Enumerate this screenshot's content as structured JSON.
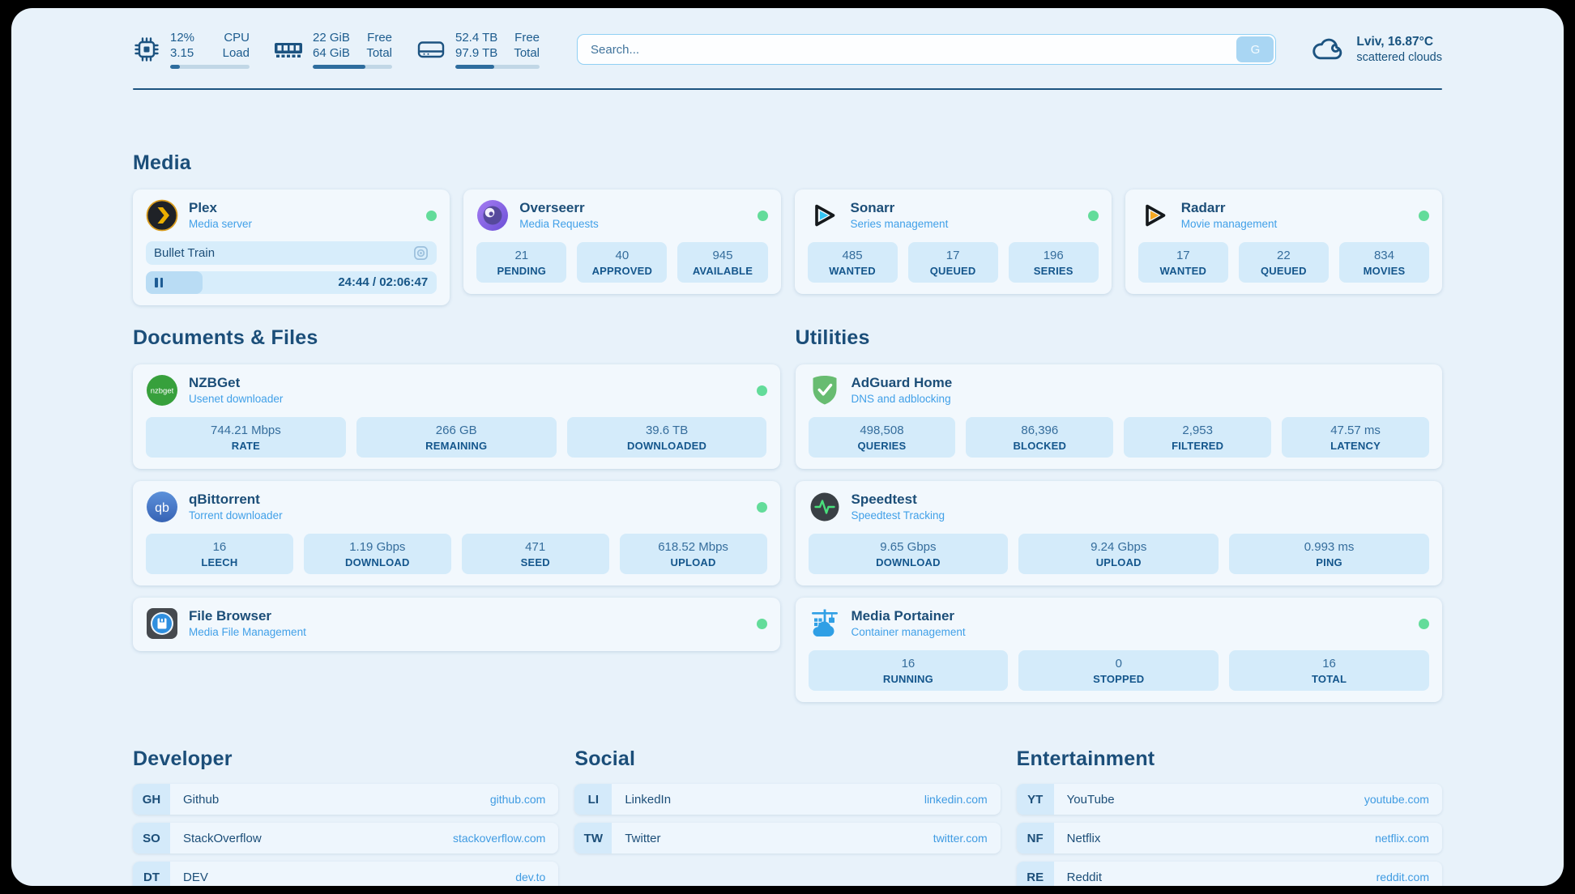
{
  "topbar": {
    "stats": [
      {
        "name": "cpu",
        "line1_value": "12%",
        "line1_label": "CPU",
        "line2_value": "3.15",
        "line2_label": "Load",
        "progress_pct": 12
      },
      {
        "name": "memory",
        "line1_value": "22 GiB",
        "line1_label": "Free",
        "line2_value": "64 GiB",
        "line2_label": "Total",
        "progress_pct": 66
      },
      {
        "name": "disk",
        "line1_value": "52.4 TB",
        "line1_label": "Free",
        "line2_value": "97.9 TB",
        "line2_label": "Total",
        "progress_pct": 46
      }
    ],
    "search": {
      "placeholder": "Search...",
      "button_label": "G"
    },
    "weather": {
      "location": "Lviv, 16.87°C",
      "condition": "scattered clouds"
    }
  },
  "sections": {
    "media": "Media",
    "documents": "Documents & Files",
    "utilities": "Utilities",
    "developer": "Developer",
    "social": "Social",
    "entertainment": "Entertainment"
  },
  "apps": {
    "plex": {
      "title": "Plex",
      "subtitle": "Media server",
      "now_playing": {
        "title": "Bullet Train",
        "time": "24:44 / 02:06:47",
        "progress_pct": 19.5
      }
    },
    "overseerr": {
      "title": "Overseerr",
      "subtitle": "Media Requests",
      "stats": [
        {
          "value": "21",
          "label": "PENDING"
        },
        {
          "value": "40",
          "label": "APPROVED"
        },
        {
          "value": "945",
          "label": "AVAILABLE"
        }
      ]
    },
    "sonarr": {
      "title": "Sonarr",
      "subtitle": "Series management",
      "stats": [
        {
          "value": "485",
          "label": "WANTED"
        },
        {
          "value": "17",
          "label": "QUEUED"
        },
        {
          "value": "196",
          "label": "SERIES"
        }
      ]
    },
    "radarr": {
      "title": "Radarr",
      "subtitle": "Movie management",
      "stats": [
        {
          "value": "17",
          "label": "WANTED"
        },
        {
          "value": "22",
          "label": "QUEUED"
        },
        {
          "value": "834",
          "label": "MOVIES"
        }
      ]
    },
    "nzbget": {
      "title": "NZBGet",
      "subtitle": "Usenet downloader",
      "stats": [
        {
          "value": "744.21 Mbps",
          "label": "RATE"
        },
        {
          "value": "266 GB",
          "label": "REMAINING"
        },
        {
          "value": "39.6 TB",
          "label": "DOWNLOADED"
        }
      ]
    },
    "qbittorrent": {
      "title": "qBittorrent",
      "subtitle": "Torrent downloader",
      "stats": [
        {
          "value": "16",
          "label": "LEECH"
        },
        {
          "value": "1.19 Gbps",
          "label": "DOWNLOAD"
        },
        {
          "value": "471",
          "label": "SEED"
        },
        {
          "value": "618.52 Mbps",
          "label": "UPLOAD"
        }
      ]
    },
    "filebrowser": {
      "title": "File Browser",
      "subtitle": "Media File Management"
    },
    "adguard": {
      "title": "AdGuard Home",
      "subtitle": "DNS and adblocking",
      "stats": [
        {
          "value": "498,508",
          "label": "QUERIES"
        },
        {
          "value": "86,396",
          "label": "BLOCKED"
        },
        {
          "value": "2,953",
          "label": "FILTERED"
        },
        {
          "value": "47.57 ms",
          "label": "LATENCY"
        }
      ]
    },
    "speedtest": {
      "title": "Speedtest",
      "subtitle": "Speedtest Tracking",
      "stats": [
        {
          "value": "9.65 Gbps",
          "label": "DOWNLOAD"
        },
        {
          "value": "9.24 Gbps",
          "label": "UPLOAD"
        },
        {
          "value": "0.993 ms",
          "label": "PING"
        }
      ]
    },
    "portainer": {
      "title": "Media Portainer",
      "subtitle": "Container management",
      "stats": [
        {
          "value": "16",
          "label": "RUNNING"
        },
        {
          "value": "0",
          "label": "STOPPED"
        },
        {
          "value": "16",
          "label": "TOTAL"
        }
      ]
    }
  },
  "links": {
    "developer": [
      {
        "badge": "GH",
        "name": "Github",
        "url": "github.com"
      },
      {
        "badge": "SO",
        "name": "StackOverflow",
        "url": "stackoverflow.com"
      },
      {
        "badge": "DT",
        "name": "DEV",
        "url": "dev.to"
      }
    ],
    "social": [
      {
        "badge": "LI",
        "name": "LinkedIn",
        "url": "linkedin.com"
      },
      {
        "badge": "TW",
        "name": "Twitter",
        "url": "twitter.com"
      }
    ],
    "entertainment": [
      {
        "badge": "YT",
        "name": "YouTube",
        "url": "youtube.com"
      },
      {
        "badge": "NF",
        "name": "Netflix",
        "url": "netflix.com"
      },
      {
        "badge": "RE",
        "name": "Reddit",
        "url": "reddit.com"
      }
    ]
  },
  "colors": {
    "background": "#e8f2fa",
    "card": "#f2f8fd",
    "stat_box": "#d4ebfa",
    "text_primary": "#1b4e79",
    "text_link": "#3f9be2",
    "status_online": "#63dc9a"
  }
}
